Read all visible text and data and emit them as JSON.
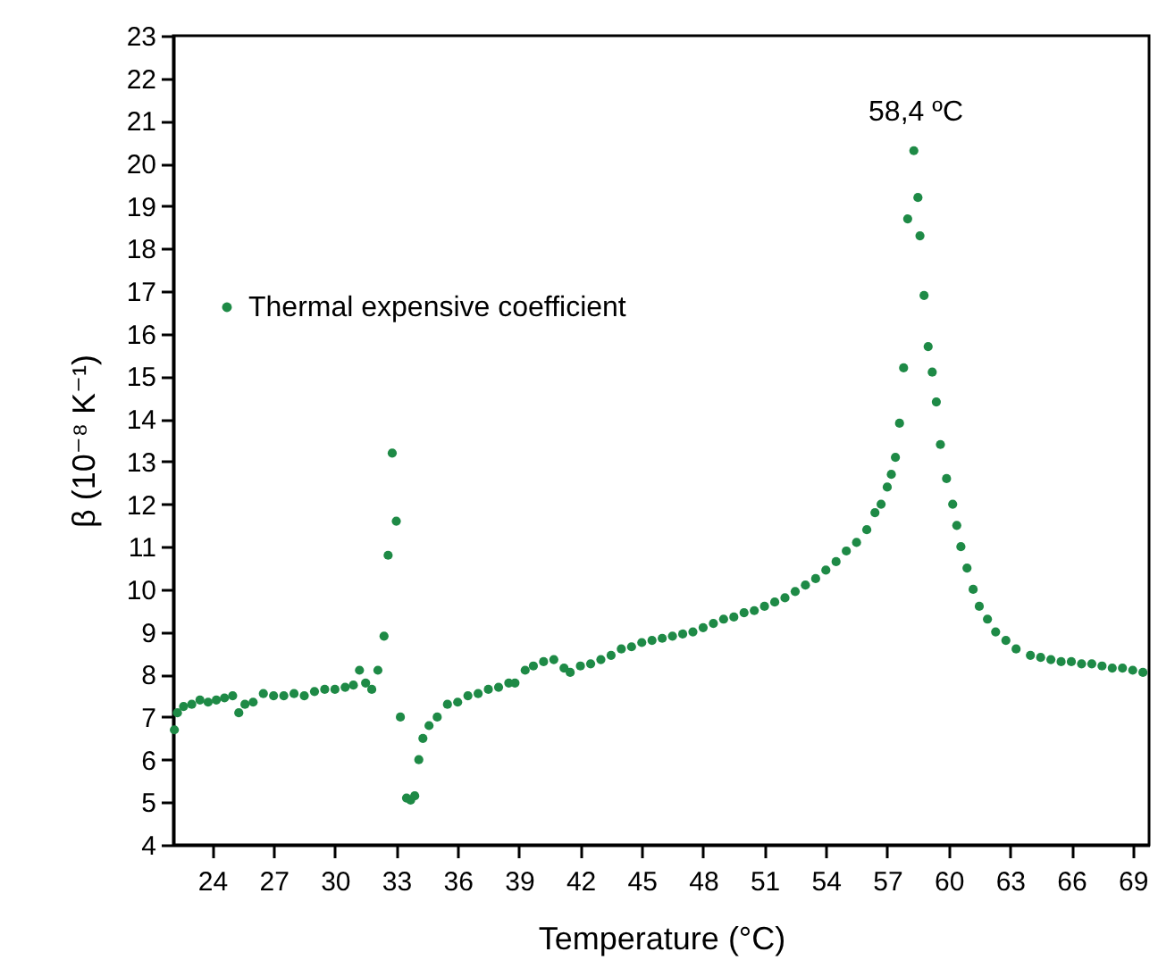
{
  "chart_data": {
    "type": "scatter",
    "xlabel": "Temperature (°C)",
    "ylabel": "β (10⁻⁸ K⁻¹)",
    "xlim": [
      22.1,
      69.8
    ],
    "xticks": [
      24,
      27,
      30,
      33,
      36,
      39,
      42,
      45,
      48,
      51,
      54,
      57,
      60,
      63,
      66,
      69
    ],
    "ylim": [
      4,
      23
    ],
    "yticks": [
      4,
      5,
      6,
      7,
      8,
      9,
      10,
      11,
      12,
      13,
      14,
      15,
      16,
      17,
      18,
      19,
      20,
      21,
      22,
      23
    ],
    "grid": false,
    "legend": "top left",
    "marker": "circle",
    "annotations": [
      {
        "text": "58,4 ºC",
        "x": 58.4,
        "y": 20.3
      }
    ],
    "series": [
      {
        "name": "Thermal expensive coefficient",
        "color": "#1e8a46",
        "x": [
          22.15,
          22.3,
          22.6,
          23,
          23.4,
          23.8,
          24.2,
          24.6,
          25,
          25.3,
          25.6,
          26,
          26.5,
          27,
          27.5,
          28,
          28.5,
          29,
          29.5,
          30,
          30.5,
          30.9,
          31.2,
          31.5,
          31.8,
          32.1,
          32.4,
          32.6,
          32.8,
          33.0,
          33.2,
          33.5,
          33.7,
          33.9,
          34.1,
          34.3,
          34.6,
          35,
          35.5,
          36,
          36.5,
          37,
          37.5,
          38,
          38.5,
          38.8,
          39.3,
          39.7,
          40.2,
          40.7,
          41.2,
          41.5,
          42,
          42.5,
          43,
          43.5,
          44,
          44.5,
          45,
          45.5,
          46,
          46.5,
          47,
          47.5,
          48,
          48.5,
          49,
          49.5,
          50,
          50.5,
          51,
          51.5,
          52,
          52.5,
          53,
          53.5,
          54,
          54.5,
          55,
          55.5,
          56,
          56.4,
          56.7,
          57.0,
          57.2,
          57.4,
          57.6,
          57.8,
          58.0,
          58.3,
          58.5,
          58.6,
          58.8,
          59.0,
          59.2,
          59.4,
          59.6,
          59.9,
          60.2,
          60.4,
          60.6,
          60.9,
          61.2,
          61.5,
          61.9,
          62.3,
          62.8,
          63.3,
          64,
          64.5,
          65,
          65.5,
          66,
          66.5,
          67,
          67.5,
          68,
          68.5,
          69,
          69.5
        ],
        "values": [
          6.7,
          7.1,
          7.25,
          7.3,
          7.4,
          7.35,
          7.4,
          7.45,
          7.5,
          7.1,
          7.3,
          7.35,
          7.55,
          7.5,
          7.5,
          7.55,
          7.5,
          7.6,
          7.65,
          7.65,
          7.7,
          7.75,
          8.1,
          7.8,
          7.65,
          8.1,
          8.9,
          10.8,
          13.2,
          11.6,
          7.0,
          5.1,
          5.05,
          5.15,
          6.0,
          6.5,
          6.8,
          7.0,
          7.3,
          7.35,
          7.5,
          7.55,
          7.65,
          7.7,
          7.8,
          7.8,
          8.1,
          8.2,
          8.3,
          8.35,
          8.15,
          8.05,
          8.2,
          8.25,
          8.35,
          8.45,
          8.6,
          8.65,
          8.75,
          8.8,
          8.85,
          8.9,
          8.95,
          9.0,
          9.1,
          9.2,
          9.3,
          9.35,
          9.45,
          9.5,
          9.6,
          9.7,
          9.8,
          9.95,
          10.1,
          10.25,
          10.45,
          10.65,
          10.9,
          11.1,
          11.4,
          11.8,
          12.0,
          12.4,
          12.7,
          13.1,
          13.9,
          15.2,
          18.7,
          20.3,
          19.2,
          18.3,
          16.9,
          15.7,
          15.1,
          14.4,
          13.4,
          12.6,
          12.0,
          11.5,
          11.0,
          10.5,
          10.0,
          9.6,
          9.3,
          9.0,
          8.8,
          8.6,
          8.45,
          8.4,
          8.35,
          8.3,
          8.3,
          8.25,
          8.25,
          8.2,
          8.15,
          8.15,
          8.1,
          8.05
        ]
      }
    ]
  }
}
